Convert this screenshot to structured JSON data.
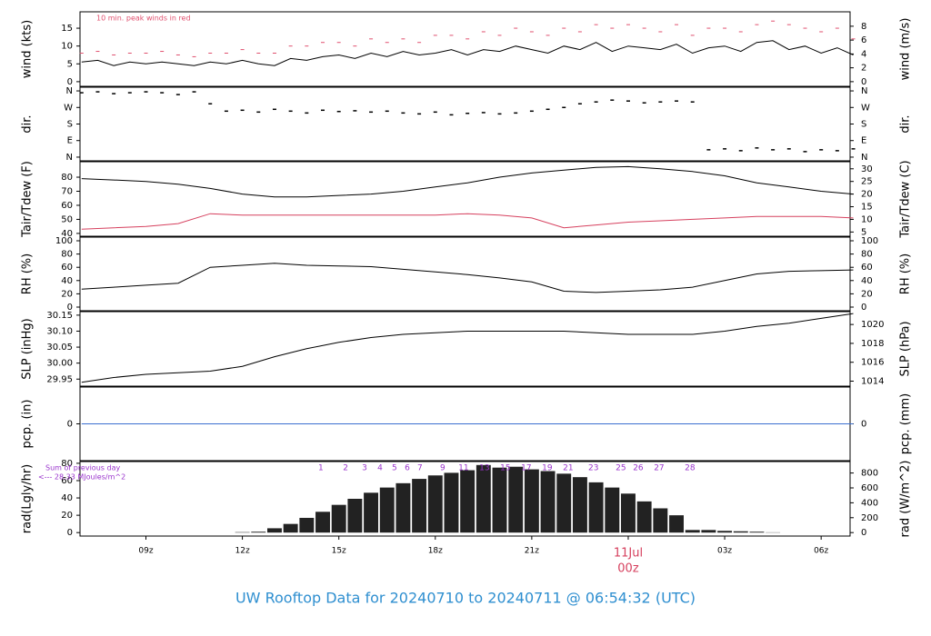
{
  "title": "UW Rooftop Data for 20240710  to  20240711 @ 06:54:32  (UTC)",
  "chart_data": [
    {
      "type": "line",
      "ylabel": "wind (kts)",
      "y2label": "wind (m/s)",
      "annotation": "10 min. peak winds in red",
      "xlim": [
        6.95,
        30.9
      ],
      "ylim": [
        -1.3,
        19.6
      ],
      "yticks": [
        0,
        5,
        10,
        15
      ],
      "y2lim": [
        -0.67,
        10.08
      ],
      "y2ticks": [
        0,
        2,
        4,
        6,
        8
      ],
      "x": [
        7,
        7.5,
        8,
        8.5,
        9,
        9.5,
        10,
        10.5,
        11,
        11.5,
        12,
        12.5,
        13,
        13.5,
        14,
        14.5,
        15,
        15.5,
        16,
        16.5,
        17,
        17.5,
        18,
        18.5,
        19,
        19.5,
        20,
        20.5,
        21,
        21.5,
        22,
        22.5,
        23,
        23.5,
        24,
        24.5,
        25,
        25.5,
        26,
        26.5,
        27,
        27.5,
        28,
        28.5,
        29,
        29.5,
        30,
        30.5,
        31
      ],
      "series": [
        {
          "name": "wind",
          "color": "#000000",
          "marker": "line",
          "values": [
            5.5,
            6,
            4.5,
            5.5,
            5,
            5.5,
            5,
            4.5,
            5.5,
            5,
            6,
            5,
            4.5,
            6.5,
            6,
            7,
            7.5,
            6.5,
            8,
            7,
            8.5,
            7.5,
            8,
            9,
            7.5,
            9,
            8.5,
            10,
            9,
            8,
            10,
            9,
            11,
            8.5,
            10,
            9.5,
            9,
            10.5,
            8,
            9.5,
            10,
            8.5,
            11,
            11.5,
            9,
            10,
            8,
            9.5,
            7.5
          ]
        },
        {
          "name": "peak",
          "color": "#e0506e",
          "marker": "dash",
          "values": [
            8,
            8.5,
            7.5,
            8,
            8,
            8.5,
            7.5,
            7,
            8,
            8,
            9,
            8,
            8,
            10,
            10,
            11,
            11,
            10,
            12,
            11,
            12,
            11,
            13,
            13,
            12,
            14,
            13,
            15,
            14,
            13,
            15,
            14,
            16,
            15,
            16,
            15,
            14,
            16,
            13,
            15,
            15,
            14,
            16,
            17,
            16,
            15,
            14,
            15,
            12
          ]
        }
      ]
    },
    {
      "type": "scatter",
      "ylabel": "dir.",
      "y2label": "dir.",
      "xlim": [
        6.95,
        30.9
      ],
      "ylim": [
        -20,
        380
      ],
      "yticks": [
        {
          "value": 0,
          "label": "N"
        },
        {
          "value": 90,
          "label": "E"
        },
        {
          "value": 180,
          "label": "S"
        },
        {
          "value": 270,
          "label": "W"
        },
        {
          "value": 360,
          "label": "N"
        }
      ],
      "y2lim": [
        -20,
        380
      ],
      "y2ticks": [
        {
          "value": 0,
          "label": "N"
        },
        {
          "value": 90,
          "label": "E"
        },
        {
          "value": 180,
          "label": "S"
        },
        {
          "value": 270,
          "label": "W"
        },
        {
          "value": 360,
          "label": "N"
        }
      ],
      "x": [
        7,
        7.5,
        8,
        8.5,
        9,
        9.5,
        10,
        10.5,
        11,
        11.5,
        12,
        12.5,
        13,
        13.5,
        14,
        14.5,
        15,
        15.5,
        16,
        16.5,
        17,
        17.5,
        18,
        18.5,
        19,
        19.5,
        20,
        20.5,
        21,
        21.5,
        22,
        22.5,
        23,
        23.5,
        24,
        24.5,
        25,
        25.5,
        26,
        26.5,
        27,
        27.5,
        28,
        28.5,
        29,
        29.5,
        30,
        30.5,
        31
      ],
      "series": [
        {
          "name": "direction",
          "color": "#000000",
          "values": [
            350,
            355,
            345,
            350,
            355,
            350,
            340,
            355,
            290,
            250,
            255,
            245,
            260,
            250,
            240,
            255,
            248,
            252,
            245,
            250,
            240,
            235,
            245,
            230,
            238,
            242,
            235,
            240,
            250,
            260,
            270,
            290,
            300,
            310,
            305,
            295,
            300,
            305,
            300,
            40,
            45,
            35,
            50,
            40,
            45,
            30,
            40,
            35,
            45
          ]
        }
      ]
    },
    {
      "type": "line",
      "ylabel": "Tair/Tdew (F)",
      "y2label": "Tair/Tdew (C)",
      "xlim": [
        6.95,
        30.9
      ],
      "ylim": [
        38,
        91
      ],
      "yticks": [
        40,
        50,
        60,
        70,
        80
      ],
      "y2lim": [
        3.33,
        32.8
      ],
      "y2ticks": [
        5,
        10,
        15,
        20,
        25,
        30
      ],
      "x": [
        7,
        8,
        9,
        10,
        11,
        12,
        13,
        14,
        15,
        16,
        17,
        18,
        19,
        20,
        21,
        22,
        23,
        24,
        25,
        26,
        27,
        28,
        29,
        30,
        31
      ],
      "series": [
        {
          "name": "Tair",
          "color": "#000000",
          "marker": "line",
          "values": [
            79,
            78,
            77,
            75,
            72,
            68,
            66,
            66,
            67,
            68,
            70,
            73,
            76,
            80,
            83,
            85,
            87,
            87.5,
            86,
            84,
            81,
            76,
            73,
            70,
            68
          ]
        },
        {
          "name": "Tdew",
          "color": "#d6405e",
          "marker": "line",
          "values": [
            43,
            44,
            45,
            47,
            54,
            53,
            53,
            53,
            53,
            53,
            53,
            53,
            54,
            53,
            51,
            44,
            46,
            48,
            49,
            50,
            51,
            52,
            52,
            52,
            51
          ]
        }
      ]
    },
    {
      "type": "line",
      "ylabel": "RH (%)",
      "y2label": "RH (%)",
      "xlim": [
        6.95,
        30.9
      ],
      "ylim": [
        -5.5,
        105.5
      ],
      "yticks": [
        0,
        20,
        40,
        60,
        80,
        100
      ],
      "y2lim": [
        -5.5,
        105.5
      ],
      "y2ticks": [
        0,
        20,
        40,
        60,
        80,
        100
      ],
      "x": [
        7,
        8,
        9,
        10,
        11,
        12,
        13,
        14,
        15,
        16,
        17,
        18,
        19,
        20,
        21,
        22,
        23,
        24,
        25,
        26,
        27,
        28,
        29,
        30,
        31
      ],
      "series": [
        {
          "name": "RH",
          "color": "#000000",
          "marker": "line",
          "values": [
            27,
            30,
            33,
            36,
            60,
            63,
            66,
            63,
            62,
            61,
            57,
            53,
            49,
            44,
            38,
            24,
            22,
            24,
            26,
            30,
            40,
            50,
            54,
            55,
            56
          ]
        }
      ]
    },
    {
      "type": "line",
      "ylabel": "SLP (inHg)",
      "y2label": "SLP (hPa)",
      "xlim": [
        6.95,
        30.9
      ],
      "ylim": [
        29.928,
        30.161
      ],
      "yticks": [
        {
          "value": 29.95,
          "label": "29.95"
        },
        {
          "value": 30,
          "label": "30.00"
        },
        {
          "value": 30.05,
          "label": "30.05"
        },
        {
          "value": 30.1,
          "label": "30.10"
        },
        {
          "value": 30.15,
          "label": "30.15"
        }
      ],
      "y2lim": [
        1013.47,
        1021.36
      ],
      "y2ticks": [
        1014,
        1016,
        1018,
        1020
      ],
      "x": [
        7,
        8,
        9,
        10,
        11,
        12,
        13,
        14,
        15,
        16,
        17,
        18,
        19,
        20,
        21,
        22,
        23,
        24,
        25,
        26,
        27,
        28,
        29,
        30,
        31
      ],
      "series": [
        {
          "name": "SLP",
          "color": "#000000",
          "marker": "line",
          "values": [
            29.94,
            29.955,
            29.965,
            29.97,
            29.975,
            29.99,
            30.02,
            30.045,
            30.065,
            30.08,
            30.09,
            30.095,
            30.1,
            30.1,
            30.1,
            30.1,
            30.095,
            30.09,
            30.09,
            30.09,
            30.1,
            30.115,
            30.125,
            30.14,
            30.155
          ]
        }
      ]
    },
    {
      "type": "line",
      "ylabel": "pcp. (in)",
      "y2label": "pcp. (mm)",
      "xlim": [
        6.95,
        30.9
      ],
      "ylim": [
        -1,
        1
      ],
      "yticks": [
        0
      ],
      "y2lim": [
        -1,
        1
      ],
      "y2ticks": [
        0
      ],
      "x": [
        7,
        31
      ],
      "series": [
        {
          "name": "pcp",
          "color": "#3b6fd0",
          "marker": "line",
          "values": [
            0,
            0
          ]
        }
      ]
    },
    {
      "type": "bar",
      "ylabel": "rad(Lgly/hr)",
      "y2label": "rad (W/m^2)",
      "note": "Sum of previous day",
      "note2": "<--- 28.33 MJoules/m^2",
      "xlim": [
        6.95,
        30.9
      ],
      "ylim": [
        -4,
        82
      ],
      "yticks": [
        0,
        20,
        40,
        60,
        80
      ],
      "y2lim": [
        -46.5,
        953.7
      ],
      "y2ticks": [
        0,
        200,
        400,
        600,
        800
      ],
      "xticks": [
        {
          "value": 9,
          "label": "09z"
        },
        {
          "value": 12,
          "label": "12z"
        },
        {
          "value": 15,
          "label": "15z"
        },
        {
          "value": 18,
          "label": "18z"
        },
        {
          "value": 21,
          "label": "21z"
        },
        {
          "value": 24,
          "label": "00z"
        },
        {
          "value": 27,
          "label": "03z"
        },
        {
          "value": 30,
          "label": "06z"
        }
      ],
      "date_label": {
        "x": 24,
        "label": "11Jul",
        "color": "#d6405e"
      },
      "markers": [
        {
          "x": 14.44,
          "label": "1"
        },
        {
          "x": 15.21,
          "label": "2"
        },
        {
          "x": 15.8,
          "label": "3"
        },
        {
          "x": 16.28,
          "label": "4"
        },
        {
          "x": 16.73,
          "label": "5"
        },
        {
          "x": 17.13,
          "label": "6"
        },
        {
          "x": 17.52,
          "label": "7"
        },
        {
          "x": 18.23,
          "label": "9"
        },
        {
          "x": 18.88,
          "label": "11"
        },
        {
          "x": 19.53,
          "label": "13"
        },
        {
          "x": 20.18,
          "label": "15"
        },
        {
          "x": 20.83,
          "label": "17"
        },
        {
          "x": 21.48,
          "label": "19"
        },
        {
          "x": 22.13,
          "label": "21"
        },
        {
          "x": 22.92,
          "label": "23"
        },
        {
          "x": 23.77,
          "label": "25"
        },
        {
          "x": 24.31,
          "label": "26"
        },
        {
          "x": 24.96,
          "label": "27"
        },
        {
          "x": 25.92,
          "label": "28"
        }
      ],
      "marker_color": "#9933cc",
      "x": [
        7,
        7.5,
        8,
        8.5,
        9,
        9.5,
        10,
        10.5,
        11,
        11.5,
        12,
        12.5,
        13,
        13.5,
        14,
        14.5,
        15,
        15.5,
        16,
        16.5,
        17,
        17.5,
        18,
        18.5,
        19,
        19.5,
        20,
        20.5,
        21,
        21.5,
        22,
        22.5,
        23,
        23.5,
        24,
        24.5,
        25,
        25.5,
        26,
        26.5,
        27,
        27.5,
        28,
        28.5,
        29,
        29.5,
        30,
        30.5,
        31
      ],
      "series": [
        {
          "name": "rad",
          "color": "#222222",
          "values": [
            0,
            0,
            0,
            0,
            0,
            0,
            0,
            0,
            0,
            0,
            0.5,
            1,
            5,
            10,
            17,
            24,
            32,
            39,
            46,
            52,
            57,
            62,
            66,
            69,
            72,
            78,
            75,
            76,
            73,
            71,
            68,
            64,
            58,
            52,
            45,
            36,
            28,
            20,
            3,
            3,
            2,
            1.5,
            1,
            0.3,
            0,
            0,
            0,
            0,
            0
          ]
        }
      ]
    }
  ]
}
